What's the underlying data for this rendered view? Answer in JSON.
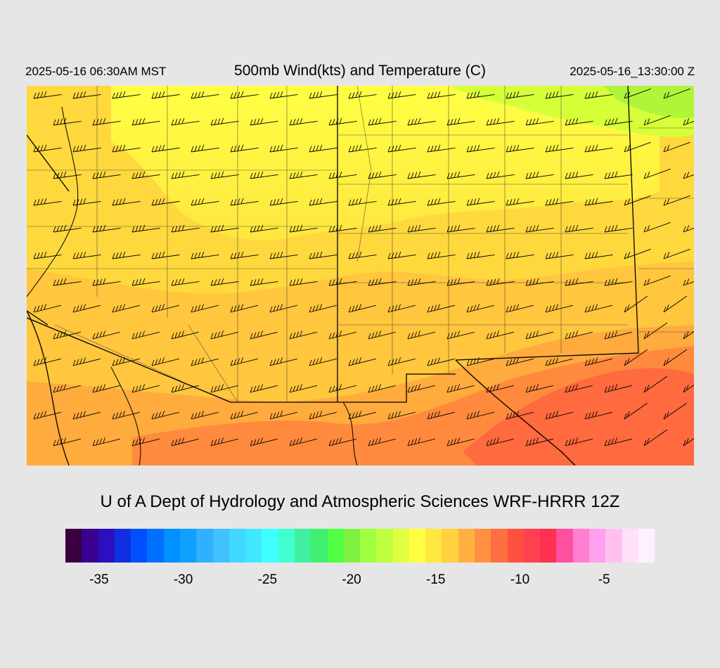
{
  "header": {
    "local_time": "2025-05-16 06:30AM MST",
    "title": "500mb Wind(kts) and Temperature (C)",
    "valid_time": "2025-05-16_13:30:00 Z"
  },
  "footer": {
    "credit": "U of A Dept of Hydrology and Atmospheric Sciences WRF-HRRR 12Z"
  },
  "map": {
    "projection_region": "Southwestern United States",
    "field": "500mb temperature",
    "overlay": "wind barbs",
    "dominant_colors": [
      "#ffd23e",
      "#ffa83e",
      "#ff6a3e",
      "#ffff3e"
    ]
  },
  "colorbar": {
    "colors": [
      "#3a0040",
      "#3a0090",
      "#2a10c0",
      "#1030e0",
      "#0050ff",
      "#0070ff",
      "#0090ff",
      "#10a0ff",
      "#30b0ff",
      "#40c0ff",
      "#40d8ff",
      "#40e8ff",
      "#40ffff",
      "#40ffd0",
      "#40f0a0",
      "#40f070",
      "#50ff40",
      "#80f040",
      "#a0ff40",
      "#c0ff40",
      "#e0ff40",
      "#ffff40",
      "#ffe840",
      "#ffd040",
      "#ffb040",
      "#ff9040",
      "#ff7040",
      "#ff5040",
      "#ff4050",
      "#ff3050",
      "#ff50a0",
      "#ff80d0",
      "#ffa0f0",
      "#ffc0f0",
      "#ffe0f8",
      "#fff0ff"
    ],
    "tick_labels": [
      "-35",
      "-30",
      "-25",
      "-20",
      "-15",
      "-10",
      "-5"
    ],
    "tick_values": [
      -35,
      -30,
      -25,
      -20,
      -15,
      -10,
      -5
    ],
    "range": [
      -37,
      -2
    ]
  }
}
